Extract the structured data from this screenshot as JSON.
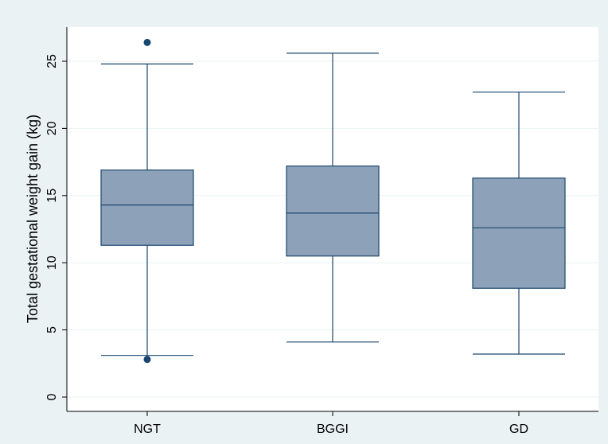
{
  "chart_data": {
    "type": "boxplot",
    "title": "",
    "xlabel": "",
    "ylabel": "Total gestational weight gain (kg)",
    "ylim": [
      0,
      27
    ],
    "yticks": [
      0,
      5,
      10,
      15,
      20,
      25
    ],
    "grid": true,
    "legend": "none",
    "categories": [
      "NGT",
      "BGGI",
      "GD"
    ],
    "boxes": [
      {
        "category": "NGT",
        "whisker_low": 3.1,
        "q1": 11.3,
        "median": 14.3,
        "q3": 16.9,
        "whisker_high": 24.8,
        "outliers": [
          2.8,
          26.4
        ]
      },
      {
        "category": "BGGI",
        "whisker_low": 4.1,
        "q1": 10.5,
        "median": 13.7,
        "q3": 17.2,
        "whisker_high": 25.6,
        "outliers": []
      },
      {
        "category": "GD",
        "whisker_low": 3.2,
        "q1": 8.1,
        "median": 12.6,
        "q3": 16.3,
        "whisker_high": 22.7,
        "outliers": []
      }
    ],
    "colors": {
      "outer_background": "#eaf2f3",
      "plot_background": "#ffffff",
      "box_fill": "#8da2b8",
      "box_stroke": "#1a476f",
      "outlier": "#1a476f",
      "grid": "#eaf2f3",
      "axis": "#000000"
    }
  }
}
